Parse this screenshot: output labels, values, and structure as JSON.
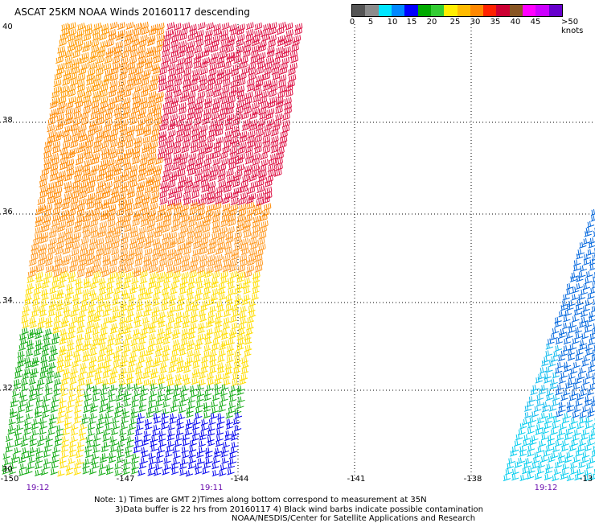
{
  "title": "ASCAT 25KM NOAA Winds 20160117 descending",
  "legend": {
    "colors": [
      "#555555",
      "#8c8c8c",
      "#00e5ff",
      "#0088ff",
      "#0000ff",
      "#00aa00",
      "#33cc33",
      "#ffee00",
      "#ffbb00",
      "#ff8800",
      "#ff2200",
      "#cc0033",
      "#885522",
      "#ff00ff",
      "#cc00ff",
      "#6600cc"
    ],
    "ticks": [
      "0",
      "5",
      "10",
      "15",
      "20",
      "25",
      "30",
      "35",
      "40",
      "45",
      ">50 knots"
    ]
  },
  "lat_labels": [
    "40",
    "38",
    "36",
    "34",
    "32",
    "30"
  ],
  "lon_labels": [
    "-150",
    "-147",
    "-144",
    "-141",
    "-138",
    "-13"
  ],
  "time_labels": [
    "19:12",
    "19:11",
    "19:12"
  ],
  "notes": {
    "line1": "Note: 1) Times are GMT 2)Times along bottom correspond to measurement at 35N",
    "line2": "3)Data buffer is 22 hrs from 20160117 4) Black wind barbs indicate possible contamination",
    "line3": "NOAA/NESDIS/Center for Satellite Applications and Research"
  }
}
